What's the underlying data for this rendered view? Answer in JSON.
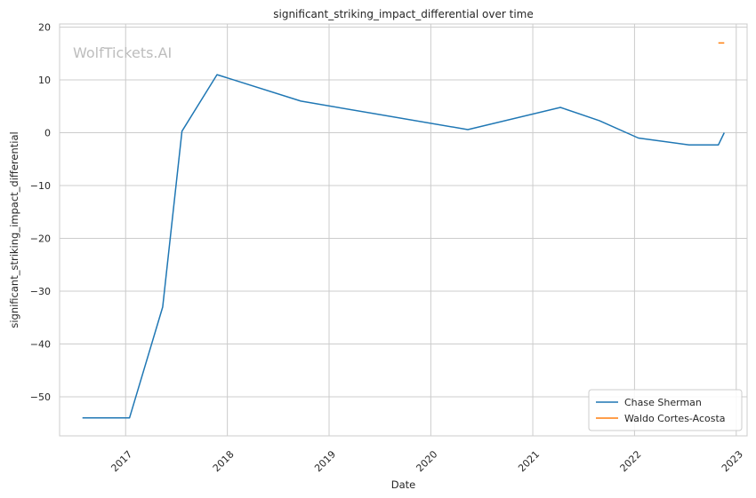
{
  "chart_data": {
    "type": "line",
    "title": "significant_striking_impact_differential over time",
    "xlabel": "Date",
    "ylabel": "significant_striking_impact_differential",
    "watermark": "WolfTickets.AI",
    "xlim": [
      "2016-05-09",
      "2023-02-09"
    ],
    "ylim": [
      -57.4,
      20.6
    ],
    "x_ticks": [
      "2017-01-01",
      "2018-01-01",
      "2019-01-01",
      "2020-01-01",
      "2021-01-01",
      "2022-01-01",
      "2023-01-01"
    ],
    "x_tick_labels": [
      "2017",
      "2018",
      "2019",
      "2020",
      "2021",
      "2022",
      "2023"
    ],
    "y_ticks": [
      20,
      10,
      0,
      -10,
      -20,
      -30,
      -40,
      -50
    ],
    "y_tick_labels": [
      "20",
      "10",
      "0",
      "−10",
      "−20",
      "−30",
      "−40",
      "−50"
    ],
    "grid": true,
    "legend_position": "bottom-right",
    "series": [
      {
        "name": "Chase Sherman",
        "color": "#1f77b4",
        "points": [
          [
            "2016-07-30",
            -54
          ],
          [
            "2017-01-15",
            -54
          ],
          [
            "2017-05-14",
            -33
          ],
          [
            "2017-07-22",
            0.3
          ],
          [
            "2017-11-25",
            11
          ],
          [
            "2018-09-22",
            6
          ],
          [
            "2020-05-13",
            0.6
          ],
          [
            "2021-04-10",
            4.8
          ],
          [
            "2021-08-28",
            2.3
          ],
          [
            "2022-01-15",
            -1
          ],
          [
            "2022-07-16",
            -2.3
          ],
          [
            "2022-10-29",
            -2.3
          ],
          [
            "2022-11-19",
            0
          ]
        ]
      },
      {
        "name": "Waldo Cortes-Acosta",
        "color": "#ff7f0e",
        "points": [
          [
            "2022-10-29",
            17
          ],
          [
            "2022-11-19",
            17
          ]
        ]
      }
    ]
  }
}
